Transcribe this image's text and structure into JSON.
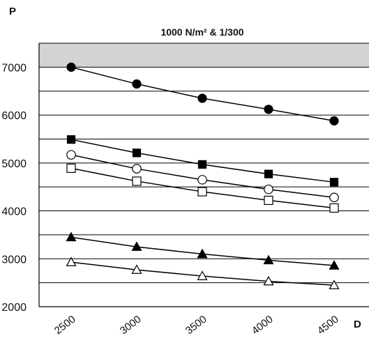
{
  "chart_data": {
    "type": "line",
    "title": "1000 N/m² & 1/300",
    "ylabel": "P",
    "xlabel": "D",
    "x": [
      2500,
      3000,
      3500,
      4000,
      4500
    ],
    "x_tick_labels": [
      "2500",
      "3000",
      "3500",
      "4000",
      "4500"
    ],
    "y_tick_labels": [
      "2000",
      "3000",
      "4000",
      "5000",
      "6000",
      "7000"
    ],
    "y_ticks": [
      2000,
      3000,
      4000,
      5000,
      6000,
      7000
    ],
    "ylim": [
      2000,
      7500
    ],
    "grid": "horizontal every 500",
    "shaded_band": [
      7000,
      7500
    ],
    "colors": {
      "shade": "#d3d3d3",
      "line": "#000000",
      "grid": "#000000"
    },
    "series": [
      {
        "marker": "filled-circle",
        "values": [
          7000,
          6650,
          6350,
          6120,
          5880
        ]
      },
      {
        "marker": "filled-square",
        "values": [
          5490,
          5210,
          4970,
          4770,
          4600
        ]
      },
      {
        "marker": "open-circle",
        "values": [
          5170,
          4880,
          4650,
          4450,
          4280
        ]
      },
      {
        "marker": "open-square",
        "values": [
          4890,
          4620,
          4400,
          4220,
          4060
        ]
      },
      {
        "marker": "filled-triangle",
        "values": [
          3450,
          3250,
          3100,
          2970,
          2860
        ]
      },
      {
        "marker": "open-triangle",
        "values": [
          2930,
          2770,
          2640,
          2530,
          2450
        ]
      }
    ]
  }
}
